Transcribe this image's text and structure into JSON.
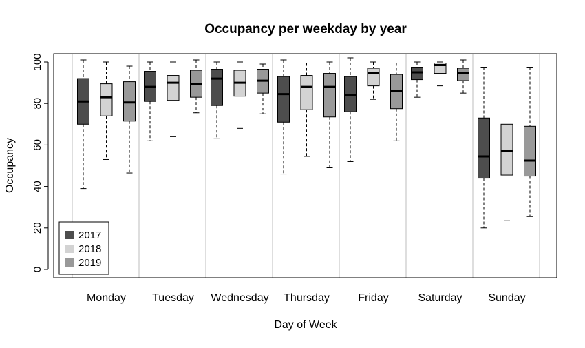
{
  "chart_data": {
    "type": "boxplot",
    "title": "Occupancy per weekday by year",
    "xlabel": "Day of Week",
    "ylabel": "Occupancy",
    "ylim": [
      0,
      100
    ],
    "yticks": [
      "0",
      "20",
      "40",
      "60",
      "80",
      "100"
    ],
    "categories": [
      "Monday",
      "Tuesday",
      "Wednesday",
      "Thursday",
      "Friday",
      "Saturday",
      "Sunday"
    ],
    "legend": {
      "position": "bottom-left",
      "entries": [
        "2017",
        "2018",
        "2019"
      ]
    },
    "series": [
      {
        "name": "2017",
        "color": "#4d4d4d",
        "boxes": [
          {
            "min": 39,
            "q1": 70,
            "median": 81,
            "q3": 92,
            "max": 101
          },
          {
            "min": 62,
            "q1": 81,
            "median": 88,
            "q3": 95.5,
            "max": 100
          },
          {
            "min": 63,
            "q1": 79,
            "median": 92,
            "q3": 96.5,
            "max": 100
          },
          {
            "min": 46,
            "q1": 71,
            "median": 84.5,
            "q3": 93,
            "max": 101
          },
          {
            "min": 52,
            "q1": 76,
            "median": 84,
            "q3": 93,
            "max": 102
          },
          {
            "min": 83,
            "q1": 91.5,
            "median": 95,
            "q3": 97.5,
            "max": 100
          },
          {
            "min": 20,
            "q1": 44,
            "median": 54.5,
            "q3": 73,
            "max": 97.5
          }
        ]
      },
      {
        "name": "2018",
        "color": "#d3d3d3",
        "boxes": [
          {
            "min": 53,
            "q1": 74,
            "median": 83,
            "q3": 89.5,
            "max": 100
          },
          {
            "min": 64,
            "q1": 81.5,
            "median": 90,
            "q3": 93.5,
            "max": 100
          },
          {
            "min": 68,
            "q1": 83.5,
            "median": 90,
            "q3": 96,
            "max": 100
          },
          {
            "min": 54.5,
            "q1": 77,
            "median": 88,
            "q3": 93.5,
            "max": 99.5
          },
          {
            "min": 82,
            "q1": 88.5,
            "median": 94.5,
            "q3": 97,
            "max": 100
          },
          {
            "min": 88.5,
            "q1": 94.5,
            "median": 98.5,
            "q3": 99.5,
            "max": 100
          },
          {
            "min": 23.5,
            "q1": 45.5,
            "median": 57,
            "q3": 70,
            "max": 99.5
          }
        ]
      },
      {
        "name": "2019",
        "color": "#999999",
        "boxes": [
          {
            "min": 46.5,
            "q1": 71.5,
            "median": 80.5,
            "q3": 90.5,
            "max": 98
          },
          {
            "min": 75.5,
            "q1": 83,
            "median": 89.5,
            "q3": 96,
            "max": 101
          },
          {
            "min": 75,
            "q1": 85,
            "median": 91,
            "q3": 96.5,
            "max": 99
          },
          {
            "min": 49,
            "q1": 73.5,
            "median": 88,
            "q3": 94.5,
            "max": 100
          },
          {
            "min": 62,
            "q1": 77.5,
            "median": 86,
            "q3": 94,
            "max": 99.5
          },
          {
            "min": 85,
            "q1": 91,
            "median": 94.5,
            "q3": 97,
            "max": 101
          },
          {
            "min": 25.5,
            "q1": 45,
            "median": 52.5,
            "q3": 69,
            "max": 97.5
          }
        ]
      }
    ]
  }
}
